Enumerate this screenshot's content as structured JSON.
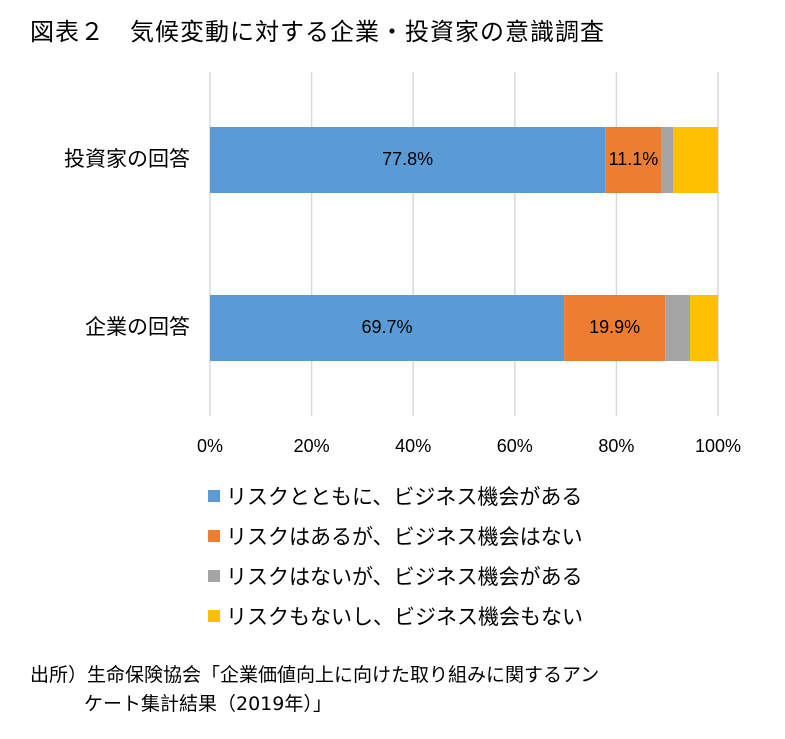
{
  "title": "図表２　気候変動に対する企業・投資家の意識調査",
  "chart_data": {
    "type": "bar",
    "orientation": "horizontal",
    "stacked": true,
    "categories": [
      "投資家の回答",
      "企業の回答"
    ],
    "series": [
      {
        "name": "リスクとともに、ビジネス機会がある",
        "color": "#5B9BD5",
        "values": [
          77.8,
          69.7
        ],
        "labels": [
          "77.8%",
          "69.7%"
        ]
      },
      {
        "name": "リスクはあるが、ビジネス機会はない",
        "color": "#ED7D31",
        "values": [
          11.1,
          19.9
        ],
        "labels": [
          "11.1%",
          "19.9%"
        ]
      },
      {
        "name": "リスクはないが、ビジネス機会がある",
        "color": "#A5A5A5",
        "values": [
          2.3,
          4.9
        ],
        "labels": [
          "",
          ""
        ]
      },
      {
        "name": "リスクもないし、ビジネス機会もない",
        "color": "#FFC000",
        "values": [
          8.8,
          5.5
        ],
        "labels": [
          "",
          ""
        ]
      }
    ],
    "xlim": [
      0,
      100
    ],
    "xticks": [
      "0%",
      "20%",
      "40%",
      "60%",
      "80%",
      "100%"
    ],
    "grid": true,
    "legend_position": "bottom"
  },
  "source": {
    "line1": "出所）生命保険協会「企業価値向上に向けた取り組みに関するアン",
    "line2": "ケート集計結果（2019年）」"
  }
}
